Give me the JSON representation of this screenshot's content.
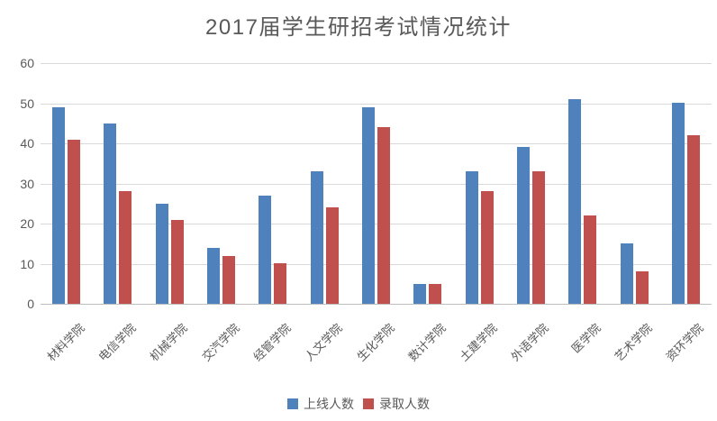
{
  "chart_data": {
    "type": "bar",
    "title": "2017届学生研招考试情况统计",
    "categories": [
      "材料学院",
      "电信学院",
      "机械学院",
      "交汽学院",
      "经管学院",
      "人文学院",
      "生化学院",
      "数计学院",
      "土建学院",
      "外语学院",
      "医学院",
      "艺术学院",
      "资环学院"
    ],
    "series": [
      {
        "key": "online",
        "name": "上线人数",
        "color": "#4F81BD",
        "values": [
          49,
          45,
          25,
          14,
          27,
          33,
          49,
          5,
          33,
          39,
          51,
          15,
          50
        ]
      },
      {
        "key": "admitted",
        "name": "录取人数",
        "color": "#C0504D",
        "values": [
          41,
          28,
          21,
          12,
          10,
          24,
          44,
          5,
          28,
          33,
          22,
          8,
          42
        ]
      }
    ],
    "ylim": [
      0,
      60
    ],
    "yticks": [
      0,
      10,
      20,
      30,
      40,
      50,
      60
    ],
    "grid": "horizontal",
    "legend_position": "bottom",
    "xlabel": "",
    "ylabel": ""
  },
  "style": {
    "text_color": "#595959",
    "gridline_color": "#D9D9D9",
    "axis_line_color": "#BFBFBF",
    "background": "#FFFFFF"
  }
}
